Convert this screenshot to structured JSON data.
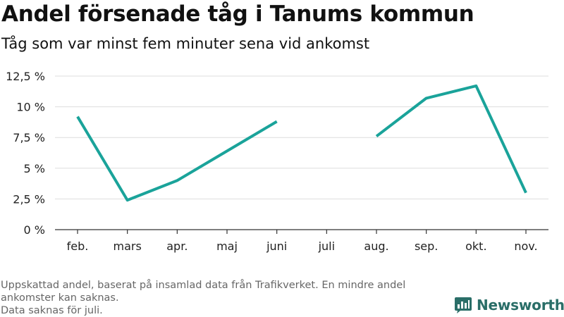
{
  "header": {
    "title": "Andel försenade tåg i Tanums kommun",
    "subtitle": "Tåg som var minst fem minuter sena vid ankomst"
  },
  "chart_data": {
    "type": "line",
    "title": "Andel försenade tåg i Tanums kommun",
    "subtitle": "Tåg som var minst fem minuter sena vid ankomst",
    "xlabel": "",
    "ylabel": "",
    "categories": [
      "feb.",
      "mars",
      "apr.",
      "maj",
      "juni",
      "juli",
      "aug.",
      "sep.",
      "okt.",
      "nov."
    ],
    "series": [
      {
        "values": [
          9.2,
          2.4,
          4.0,
          6.4,
          8.8,
          null,
          7.6,
          10.7,
          11.7,
          3.0
        ]
      }
    ],
    "y_ticks": [
      0,
      2.5,
      5,
      7.5,
      10,
      12.5
    ],
    "y_tick_labels": [
      "0 %",
      "2,5 %",
      "5 %",
      "7,5 %",
      "10 %",
      "12,5 %"
    ],
    "ylim": [
      0,
      12.5
    ],
    "grid": true,
    "legend": "none",
    "line_color": "#1aa39a"
  },
  "footer": {
    "note_1": "Uppskattad andel, baserat på insamlad data från Trafikverket. En mindre andel ankomster kan saknas.",
    "note_2": "Data saknas för juli."
  },
  "brand": {
    "name": "Newsworthy",
    "logo_icon": "bar-chart-speech-bubble-icon"
  }
}
